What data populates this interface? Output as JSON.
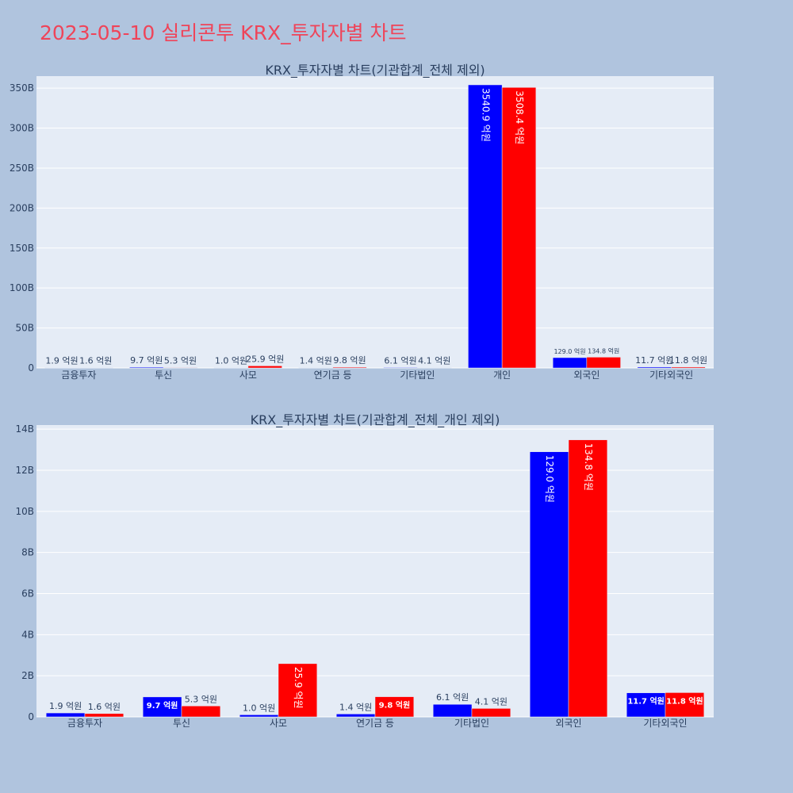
{
  "page": {
    "title": "2023-05-10 실리콘투 KRX_투자자별 차트"
  },
  "chart_data": [
    {
      "type": "bar",
      "title": "KRX_투자자별 차트(기관합계_전체 제외)",
      "xlabel": "",
      "ylabel": "",
      "ylim": [
        0,
        365000000000
      ],
      "yticks": [
        0,
        50000000000,
        100000000000,
        150000000000,
        200000000000,
        250000000000,
        300000000000,
        350000000000
      ],
      "ytick_labels": [
        "0",
        "50B",
        "100B",
        "150B",
        "200B",
        "250B",
        "300B",
        "350B"
      ],
      "categories": [
        "금융투자",
        "투신",
        "사모",
        "연기금 등",
        "기타법인",
        "개인",
        "외국인",
        "기타외국인"
      ],
      "series": [
        {
          "color": "#0000ff",
          "values": [
            190000000,
            970000000,
            100000000,
            140000000,
            610000000,
            354090000000,
            12900000000,
            1170000000
          ],
          "labels": [
            "1.9 억원",
            "9.7 억원",
            "1.0 억원",
            "1.4 억원",
            "6.1 억원",
            "3540.9 억원",
            "129.0 억원",
            "11.7 억원"
          ]
        },
        {
          "color": "#ff0000",
          "values": [
            160000000,
            530000000,
            2590000000,
            980000000,
            410000000,
            350840000000,
            13480000000,
            1180000000
          ],
          "labels": [
            "1.6 억원",
            "5.3 억원",
            "25.9 억원",
            "9.8 억원",
            "4.1 억원",
            "3508.4 억원",
            "134.8 억원",
            "11.8 억원"
          ]
        }
      ],
      "grid": true,
      "legend": "none"
    },
    {
      "type": "bar",
      "title": "KRX_투자자별 차트(기관합계_전체_개인 제외)",
      "xlabel": "",
      "ylabel": "",
      "ylim": [
        0,
        14200000000
      ],
      "yticks": [
        0,
        2000000000,
        4000000000,
        6000000000,
        8000000000,
        10000000000,
        12000000000,
        14000000000
      ],
      "ytick_labels": [
        "0",
        "2B",
        "4B",
        "6B",
        "8B",
        "10B",
        "12B",
        "14B"
      ],
      "categories": [
        "금융투자",
        "투신",
        "사모",
        "연기금 등",
        "기타법인",
        "외국인",
        "기타외국인"
      ],
      "series": [
        {
          "color": "#0000ff",
          "values": [
            190000000,
            970000000,
            100000000,
            140000000,
            610000000,
            12900000000,
            1170000000
          ],
          "labels": [
            "1.9 억원",
            "9.7 억원",
            "1.0 억원",
            "1.4 억원",
            "6.1 억원",
            "129.0 억원",
            "11.7 억원"
          ]
        },
        {
          "color": "#ff0000",
          "values": [
            160000000,
            530000000,
            2590000000,
            980000000,
            410000000,
            13480000000,
            1180000000
          ],
          "labels": [
            "1.6 억원",
            "5.3 억원",
            "25.9 억원",
            "9.8 억원",
            "4.1 억원",
            "134.8 억원",
            "11.8 억원"
          ]
        }
      ],
      "grid": true,
      "legend": "none"
    }
  ]
}
